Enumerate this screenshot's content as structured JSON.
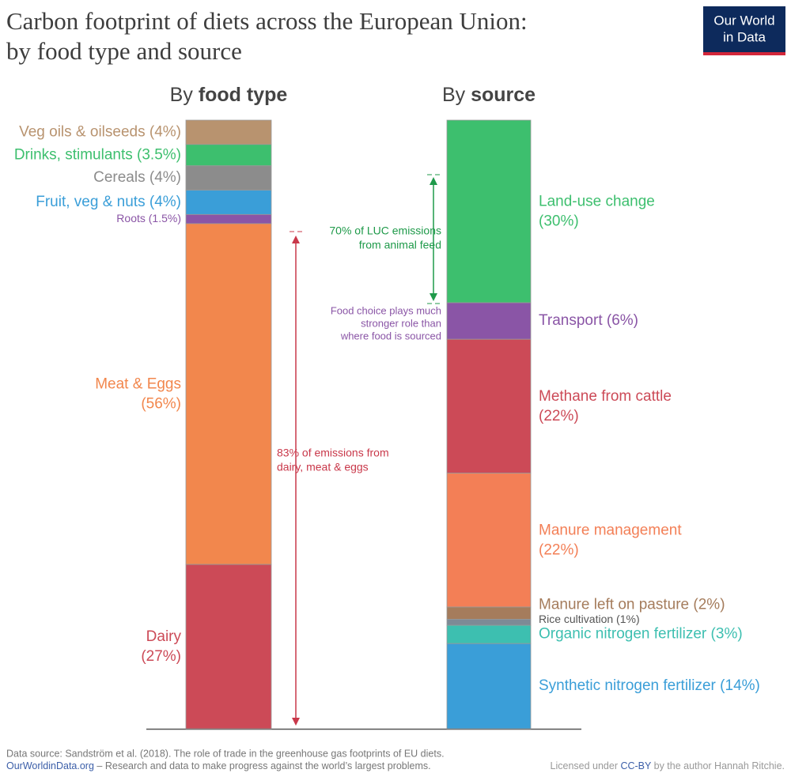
{
  "title": [
    "Carbon footprint of diets across the European Union:",
    "by food type and source"
  ],
  "logo": [
    "Our World",
    "in Data"
  ],
  "chart_data": [
    {
      "type": "stacked-bar",
      "title_prefix": "By",
      "title_emphasis": "food type",
      "label_side": "left",
      "ylim": [
        0,
        100
      ],
      "categories": [
        "Veg oils & oilseeds",
        "Drinks, stimulants",
        "Cereals",
        "Fruit, veg & nuts",
        "Roots",
        "Meat & Eggs",
        "Dairy"
      ],
      "values": [
        4,
        3.5,
        4,
        4,
        1.5,
        56,
        27
      ],
      "value_labels": [
        "(4%)",
        "(3.5%)",
        "(4%)",
        "(4%)",
        "(1.5%)",
        "(56%)",
        "(27%)"
      ],
      "colors": [
        "#b8936f",
        "#3dbf6e",
        "#8c8c8c",
        "#3a9ed8",
        "#8a55a6",
        "#f2874d",
        "#cc4a57"
      ]
    },
    {
      "type": "stacked-bar",
      "title_prefix": "By",
      "title_emphasis": "source",
      "label_side": "right",
      "ylim": [
        0,
        100
      ],
      "categories": [
        "Land-use change",
        "Transport",
        "Methane from cattle",
        "Manure management",
        "Manure left on pasture",
        "Rice cultivation",
        "Organic nitrogen fertilizer",
        "Synthetic nitrogen fertilizer"
      ],
      "values": [
        30,
        6,
        22,
        22,
        2,
        1,
        3,
        14
      ],
      "value_labels": [
        "(30%)",
        "(6%)",
        "(22%)",
        "(22%)",
        "(2%)",
        "(1%)",
        "(3%)",
        "(14%)"
      ],
      "colors": [
        "#3dbf6e",
        "#8a55a6",
        "#cc4a57",
        "#f37f56",
        "#a57c5c",
        "#7d8a96",
        "#3dbfb0",
        "#3a9ed8"
      ]
    }
  ],
  "annotations": {
    "luc": [
      "70% of LUC emissions",
      "from animal feed"
    ],
    "choice": [
      "Food choice plays much",
      "stronger role than",
      "where food is sourced"
    ],
    "animal": [
      "83% of emissions from",
      "dairy, meat & eggs"
    ]
  },
  "footer": {
    "source": "Data source: Sandström et al. (2018). The role of trade in the greenhouse gas footprints of EU diets.",
    "site": "OurWorldinData.org",
    "mission": " – Research and data to make progress against the world’s largest problems.",
    "license_prefix": "Licensed under ",
    "license": "CC-BY",
    "license_suffix": " by the author Hannah Ritchie."
  }
}
